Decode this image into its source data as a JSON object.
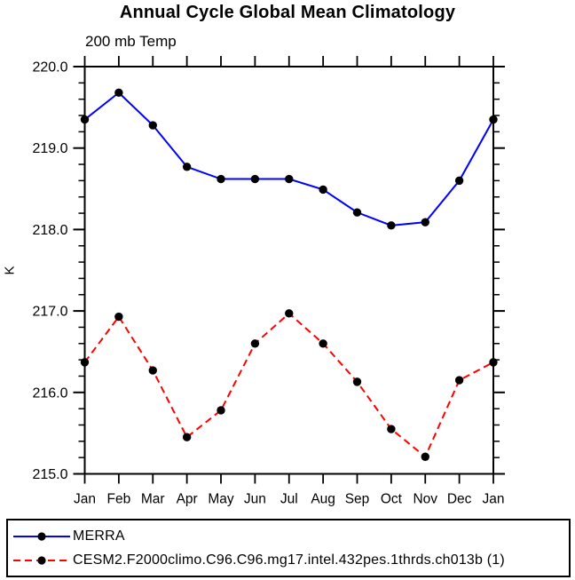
{
  "chart_data": {
    "type": "line",
    "title": "Annual Cycle Global Mean Climatology",
    "subtitle": "200 mb Temp",
    "xlabel": "",
    "ylabel": "K",
    "categories": [
      "Jan",
      "Feb",
      "Mar",
      "Apr",
      "May",
      "Jun",
      "Jul",
      "Aug",
      "Sep",
      "Oct",
      "Nov",
      "Dec",
      "Jan"
    ],
    "series": [
      {
        "name": "MERRA",
        "line_color": "#0000ff",
        "line_style": "solid",
        "marker": "filled-circle",
        "marker_color": "#000000",
        "values": [
          219.35,
          219.68,
          219.28,
          218.77,
          218.62,
          218.62,
          218.62,
          218.49,
          218.21,
          218.05,
          218.09,
          218.6,
          219.35
        ]
      },
      {
        "name": "CESM2.F2000climo.C96.C96.mg17.intel.432pes.1thrds.ch013b (1)",
        "line_color": "#ff0000",
        "line_style": "dashed",
        "marker": "filled-circle",
        "marker_color": "#000000",
        "values": [
          216.37,
          216.93,
          216.27,
          215.45,
          215.78,
          216.6,
          216.97,
          216.6,
          216.13,
          215.55,
          215.21,
          216.15,
          216.37
        ]
      }
    ],
    "ylim": [
      215.0,
      220.0
    ],
    "ytick_values": [
      215.0,
      216.0,
      217.0,
      218.0,
      219.0,
      220.0
    ],
    "ytick_labels": [
      "215.0",
      "216.0",
      "217.0",
      "218.0",
      "219.0",
      "220.0"
    ],
    "y_minor_step": 0.2,
    "grid": false,
    "axis_color": "#000000",
    "text_color": "#000000",
    "legend_position": "bottom-box"
  }
}
